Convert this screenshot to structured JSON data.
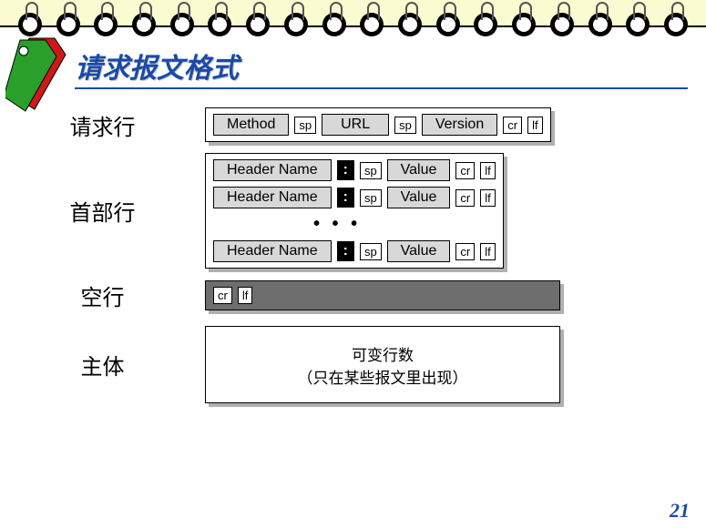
{
  "page": {
    "title": "请求报文格式",
    "number": "21",
    "ring_count": 18,
    "colors": {
      "accent": "#1a4aa8",
      "top_band": "#fafbd0",
      "token_grey": "#d8d8d8",
      "dark_row": "#6e6e6e",
      "shadow": "#b0b0b0"
    },
    "tag_icon": {
      "front_color": "#2aa02a",
      "back_color": "#d01818"
    }
  },
  "sections": {
    "request_line": {
      "label": "请求行",
      "tokens": [
        {
          "text": "Method",
          "style": "grey med"
        },
        {
          "text": "sp",
          "style": "sm"
        },
        {
          "text": "URL",
          "style": "grey wide"
        },
        {
          "text": "sp",
          "style": "sm"
        },
        {
          "text": "Version",
          "style": "grey med"
        },
        {
          "text": "cr",
          "style": "sm"
        },
        {
          "text": "lf",
          "style": "sm"
        }
      ]
    },
    "header_lines": {
      "label": "首部行",
      "header_row_tokens": [
        {
          "text": "Header Name",
          "style": "grey med"
        },
        {
          "text": ":",
          "style": "colon"
        },
        {
          "text": "sp",
          "style": "sm"
        },
        {
          "text": "Value",
          "style": "grey med"
        },
        {
          "text": "cr",
          "style": "sm"
        },
        {
          "text": "lf",
          "style": "sm"
        }
      ],
      "ellipsis": "• • •",
      "rows_shown": 3
    },
    "blank_line": {
      "label": "空行",
      "tokens": [
        {
          "text": "cr",
          "style": "sm"
        },
        {
          "text": "lf",
          "style": "sm"
        }
      ]
    },
    "body": {
      "label": "主体",
      "line1": "可变行数",
      "line2": "（只在某些报文里出现）"
    }
  }
}
